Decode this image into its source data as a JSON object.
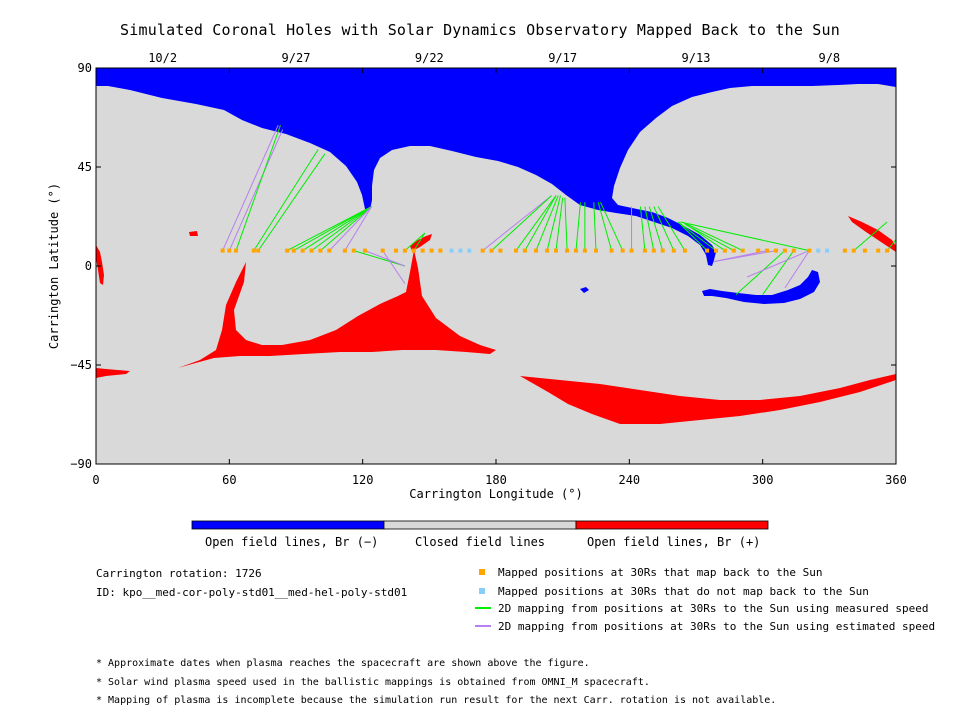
{
  "chart_data": {
    "type": "scatter",
    "title": "Simulated Coronal Holes with Solar Dynamics Observatory Mapped Back to the Sun",
    "xlabel": "Carrington Longitude (°)",
    "ylabel": "Carrington Latitude (°)",
    "xlim": [
      0,
      360
    ],
    "ylim": [
      -90,
      90
    ],
    "x_ticks": [
      "0",
      "60",
      "120",
      "180",
      "240",
      "300",
      "360"
    ],
    "y_ticks": [
      "90",
      "45",
      "0",
      "-45",
      "-90"
    ],
    "date_ticks": [
      {
        "lon": 30,
        "label": "10/2"
      },
      {
        "lon": 90,
        "label": "9/27"
      },
      {
        "lon": 150,
        "label": "9/22"
      },
      {
        "lon": 210,
        "label": "9/17"
      },
      {
        "lon": 270,
        "label": "9/13"
      },
      {
        "lon": 330,
        "label": "9/8"
      }
    ],
    "colorbar": [
      "Open field lines, Br (−)",
      "Closed field lines",
      "Open field lines, Br (+)"
    ],
    "colors": {
      "open_negative": "#0000ff",
      "closed": "#d9d9d9",
      "open_positive": "#ff0000",
      "mapped_back": "#ffa500",
      "not_mapped": "#87cefa",
      "measured_speed": "#00ee00",
      "estimated_speed": "#b87fee"
    },
    "orbit_latitude": 7,
    "spacecraft_points": [
      {
        "lon": 57,
        "c": "o"
      },
      {
        "lon": 60,
        "c": "o"
      },
      {
        "lon": 63,
        "c": "o"
      },
      {
        "lon": 71,
        "c": "o"
      },
      {
        "lon": 73,
        "c": "o"
      },
      {
        "lon": 86,
        "c": "o"
      },
      {
        "lon": 89,
        "c": "o"
      },
      {
        "lon": 93,
        "c": "o"
      },
      {
        "lon": 97,
        "c": "o"
      },
      {
        "lon": 101,
        "c": "o"
      },
      {
        "lon": 105,
        "c": "o"
      },
      {
        "lon": 112,
        "c": "o"
      },
      {
        "lon": 116,
        "c": "o"
      },
      {
        "lon": 121,
        "c": "o"
      },
      {
        "lon": 129,
        "c": "o"
      },
      {
        "lon": 135,
        "c": "o"
      },
      {
        "lon": 139,
        "c": "o"
      },
      {
        "lon": 143,
        "c": "o"
      },
      {
        "lon": 147,
        "c": "o"
      },
      {
        "lon": 151,
        "c": "o"
      },
      {
        "lon": 155,
        "c": "o"
      },
      {
        "lon": 160,
        "c": "b"
      },
      {
        "lon": 164,
        "c": "b"
      },
      {
        "lon": 168,
        "c": "b"
      },
      {
        "lon": 174,
        "c": "o"
      },
      {
        "lon": 178,
        "c": "o"
      },
      {
        "lon": 182,
        "c": "o"
      },
      {
        "lon": 189,
        "c": "o"
      },
      {
        "lon": 193,
        "c": "o"
      },
      {
        "lon": 198,
        "c": "o"
      },
      {
        "lon": 203,
        "c": "o"
      },
      {
        "lon": 207,
        "c": "o"
      },
      {
        "lon": 212,
        "c": "o"
      },
      {
        "lon": 216,
        "c": "o"
      },
      {
        "lon": 220,
        "c": "o"
      },
      {
        "lon": 225,
        "c": "o"
      },
      {
        "lon": 232,
        "c": "o"
      },
      {
        "lon": 237,
        "c": "o"
      },
      {
        "lon": 241,
        "c": "o"
      },
      {
        "lon": 247,
        "c": "o"
      },
      {
        "lon": 251,
        "c": "o"
      },
      {
        "lon": 255,
        "c": "o"
      },
      {
        "lon": 260,
        "c": "o"
      },
      {
        "lon": 265,
        "c": "o"
      },
      {
        "lon": 275,
        "c": "o"
      },
      {
        "lon": 279,
        "c": "o"
      },
      {
        "lon": 283,
        "c": "o"
      },
      {
        "lon": 287,
        "c": "o"
      },
      {
        "lon": 291,
        "c": "o"
      },
      {
        "lon": 298,
        "c": "o"
      },
      {
        "lon": 302,
        "c": "o"
      },
      {
        "lon": 306,
        "c": "o"
      },
      {
        "lon": 310,
        "c": "o"
      },
      {
        "lon": 314,
        "c": "o"
      },
      {
        "lon": 321,
        "c": "o"
      },
      {
        "lon": 325,
        "c": "b"
      },
      {
        "lon": 329,
        "c": "b"
      },
      {
        "lon": 337,
        "c": "o"
      },
      {
        "lon": 341,
        "c": "o"
      },
      {
        "lon": 346,
        "c": "o"
      },
      {
        "lon": 352,
        "c": "o"
      },
      {
        "lon": 356,
        "c": "o"
      }
    ],
    "mappings": [
      {
        "from": 57,
        "to": [
          82,
          64
        ],
        "s": "p"
      },
      {
        "from": 60,
        "to": [
          84,
          62
        ],
        "s": "p"
      },
      {
        "from": 63,
        "to": [
          83,
          64
        ],
        "s": "g"
      },
      {
        "from": 71,
        "to": [
          100,
          53
        ],
        "s": "g"
      },
      {
        "from": 73,
        "to": [
          103,
          51
        ],
        "s": "g"
      },
      {
        "from": 86,
        "to": [
          124,
          27
        ],
        "s": "g"
      },
      {
        "from": 89,
        "to": [
          124,
          27
        ],
        "s": "g"
      },
      {
        "from": 93,
        "to": [
          124,
          27
        ],
        "s": "g"
      },
      {
        "from": 97,
        "to": [
          124,
          27
        ],
        "s": "g"
      },
      {
        "from": 101,
        "to": [
          124,
          27
        ],
        "s": "g"
      },
      {
        "from": 105,
        "to": [
          124,
          27
        ],
        "s": "p"
      },
      {
        "from": 112,
        "to": [
          124,
          27
        ],
        "s": "p"
      },
      {
        "from": 116,
        "to": [
          139,
          0
        ],
        "s": "g"
      },
      {
        "from": 121,
        "to": [
          139,
          0
        ],
        "s": "p"
      },
      {
        "from": 129,
        "to": [
          139,
          -8
        ],
        "s": "p"
      },
      {
        "from": 139,
        "to": [
          148,
          15
        ],
        "s": "g"
      },
      {
        "from": 143,
        "to": [
          148,
          15
        ],
        "s": "g"
      },
      {
        "from": 174,
        "to": [
          205,
          32
        ],
        "s": "p"
      },
      {
        "from": 178,
        "to": [
          205,
          32
        ],
        "s": "g"
      },
      {
        "from": 189,
        "to": [
          207,
          32
        ],
        "s": "g"
      },
      {
        "from": 193,
        "to": [
          207,
          32
        ],
        "s": "g"
      },
      {
        "from": 198,
        "to": [
          208,
          32
        ],
        "s": "g"
      },
      {
        "from": 203,
        "to": [
          209,
          32
        ],
        "s": "g"
      },
      {
        "from": 207,
        "to": [
          210,
          31
        ],
        "s": "g"
      },
      {
        "from": 212,
        "to": [
          211,
          31
        ],
        "s": "g"
      },
      {
        "from": 216,
        "to": [
          218,
          29
        ],
        "s": "g"
      },
      {
        "from": 220,
        "to": [
          220,
          29
        ],
        "s": "g"
      },
      {
        "from": 225,
        "to": [
          224,
          29
        ],
        "s": "g"
      },
      {
        "from": 232,
        "to": [
          226,
          29
        ],
        "s": "g"
      },
      {
        "from": 237,
        "to": [
          227,
          29
        ],
        "s": "g"
      },
      {
        "from": 241,
        "to": [
          241,
          27
        ],
        "s": "p"
      },
      {
        "from": 247,
        "to": [
          245,
          27
        ],
        "s": "g"
      },
      {
        "from": 251,
        "to": [
          247,
          27
        ],
        "s": "g"
      },
      {
        "from": 255,
        "to": [
          249,
          27
        ],
        "s": "g"
      },
      {
        "from": 260,
        "to": [
          251,
          27
        ],
        "s": "g"
      },
      {
        "from": 265,
        "to": [
          253,
          27
        ],
        "s": "g"
      },
      {
        "from": 275,
        "to": [
          262,
          20
        ],
        "s": "g"
      },
      {
        "from": 279,
        "to": [
          262,
          20
        ],
        "s": "g"
      },
      {
        "from": 283,
        "to": [
          264,
          20
        ],
        "s": "g"
      },
      {
        "from": 287,
        "to": [
          265,
          19
        ],
        "s": "g"
      },
      {
        "from": 291,
        "to": [
          266,
          19
        ],
        "s": "g"
      },
      {
        "from": 321,
        "to": [
          263,
          20
        ],
        "s": "g"
      },
      {
        "from": 302,
        "to": [
          278,
          2
        ],
        "s": "p"
      },
      {
        "from": 306,
        "to": [
          278,
          2
        ],
        "s": "p"
      },
      {
        "from": 310,
        "to": [
          288,
          -13
        ],
        "s": "g"
      },
      {
        "from": 314,
        "to": [
          300,
          -13
        ],
        "s": "g"
      },
      {
        "from": 321,
        "to": [
          310,
          -10
        ],
        "s": "p"
      },
      {
        "from": 321,
        "to": [
          293,
          -5
        ],
        "s": "p"
      },
      {
        "from": 341,
        "to": [
          356,
          20
        ],
        "s": "g"
      },
      {
        "from": 356,
        "to": [
          360,
          12
        ],
        "s": "g"
      }
    ]
  },
  "info": {
    "rotation": "Carrington rotation: 1726",
    "id": "ID: kpo__med-cor-poly-std01__med-hel-poly-std01"
  },
  "legend": {
    "mapped": "Mapped positions at 30Rs that map back to the Sun",
    "not_mapped": "Mapped positions at 30Rs that do not map back to the Sun",
    "measured": "2D mapping from positions at 30Rs to the Sun using measured speed",
    "estimated": "2D mapping from positions at 30Rs to the Sun using estimated speed"
  },
  "notes": [
    "* Approximate dates when plasma reaches the spacecraft are shown above the figure.",
    "* Solar wind plasma speed used in the ballistic mappings is obtained from OMNI_M spacecraft.",
    "* Mapping of plasma is incomplete because the simulation run result for the next Carr. rotation is not available."
  ]
}
